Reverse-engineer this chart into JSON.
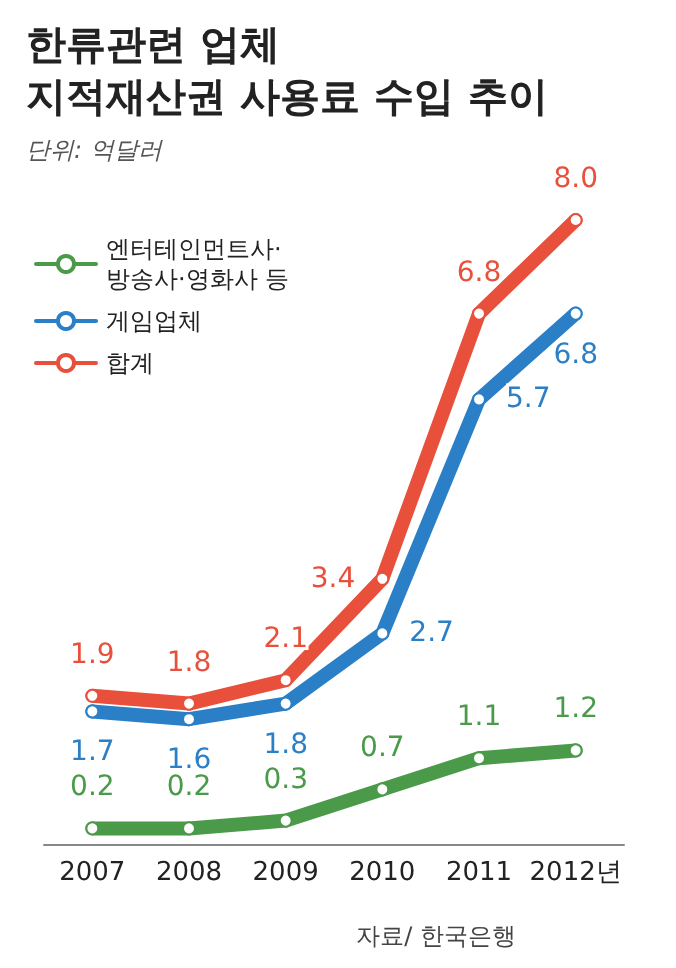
{
  "chart_data": {
    "type": "line",
    "title": "한류관련 업체\n지적재산권 사용료 수입 추이",
    "subtitle": "단위: 억달러",
    "categories": [
      "2007",
      "2008",
      "2009",
      "2010",
      "2011",
      "2012년"
    ],
    "series": [
      {
        "name": "엔터테인먼트사·\n방송사·영화사 등",
        "color": "#4a9a4a",
        "values": [
          0.2,
          0.2,
          0.3,
          0.7,
          1.1,
          1.2
        ],
        "value_labels": [
          "0.2",
          "0.2",
          "0.3",
          "0.7",
          "1.1",
          "1.2"
        ]
      },
      {
        "name": "게임업체",
        "color": "#2b7fc6",
        "values": [
          1.7,
          1.6,
          1.8,
          2.7,
          5.7,
          6.8
        ],
        "value_labels": [
          "1.7",
          "1.6",
          "1.8",
          "2.7",
          "5.7",
          "6.8"
        ]
      },
      {
        "name": "합계",
        "color": "#e8503c",
        "values": [
          1.9,
          1.8,
          2.1,
          3.4,
          6.8,
          8.0
        ],
        "value_labels": [
          "1.9",
          "1.8",
          "2.1",
          "3.4",
          "6.8",
          "8.0"
        ]
      }
    ],
    "legend": "top left",
    "grid": false,
    "marker": "circle",
    "line_style": "solid",
    "annotations": [
      "자료/ 한국은행"
    ]
  }
}
